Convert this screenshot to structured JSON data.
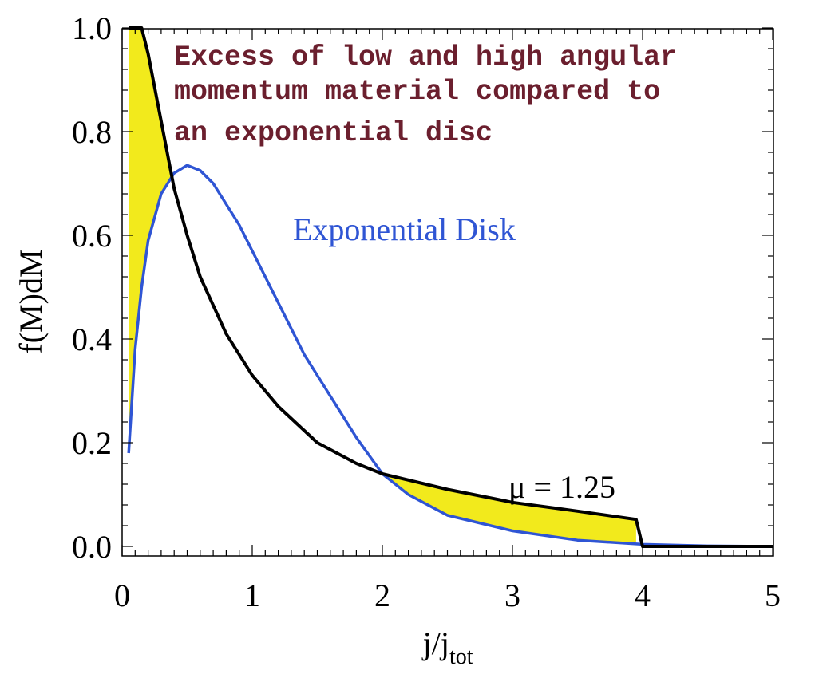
{
  "chart_data": {
    "type": "line",
    "xlabel": "j/j",
    "xlabel_sub": "tot",
    "ylabel": "f(M)dM",
    "xlim": [
      0,
      5
    ],
    "ylim": [
      0,
      1.0
    ],
    "x_ticks": [
      "0",
      "1",
      "2",
      "3",
      "4",
      "5"
    ],
    "y_ticks": [
      "0.0",
      "0.2",
      "0.4",
      "0.6",
      "0.8",
      "1.0"
    ],
    "annotation_lines": [
      "Excess of low and high angular",
      "momentum material compared to",
      "an exponential disc"
    ],
    "series": [
      {
        "name": "μ = 1.25",
        "color": "#000000",
        "x": [
          0.05,
          0.1,
          0.15,
          0.2,
          0.3,
          0.4,
          0.5,
          0.6,
          0.8,
          1.0,
          1.2,
          1.5,
          1.8,
          2.0,
          2.5,
          3.0,
          3.5,
          3.95,
          4.0,
          4.5,
          5.0
        ],
        "y": [
          1.0,
          1.0,
          1.0,
          0.95,
          0.82,
          0.69,
          0.6,
          0.52,
          0.41,
          0.33,
          0.27,
          0.2,
          0.16,
          0.14,
          0.11,
          0.085,
          0.068,
          0.052,
          0.0,
          0.0,
          0.0
        ]
      },
      {
        "name": "Exponential Disk",
        "color": "#2f55d4",
        "x": [
          0.05,
          0.1,
          0.15,
          0.2,
          0.3,
          0.4,
          0.5,
          0.6,
          0.7,
          0.8,
          0.9,
          1.0,
          1.2,
          1.4,
          1.6,
          1.8,
          2.0,
          2.2,
          2.5,
          3.0,
          3.5,
          4.0,
          4.5,
          5.0
        ],
        "y": [
          0.18,
          0.38,
          0.5,
          0.59,
          0.68,
          0.72,
          0.735,
          0.725,
          0.7,
          0.66,
          0.62,
          0.57,
          0.47,
          0.37,
          0.29,
          0.21,
          0.14,
          0.1,
          0.06,
          0.03,
          0.012,
          0.004,
          0.001,
          0.0
        ]
      }
    ],
    "fill_color": "#f2ea1c",
    "grid": false
  }
}
